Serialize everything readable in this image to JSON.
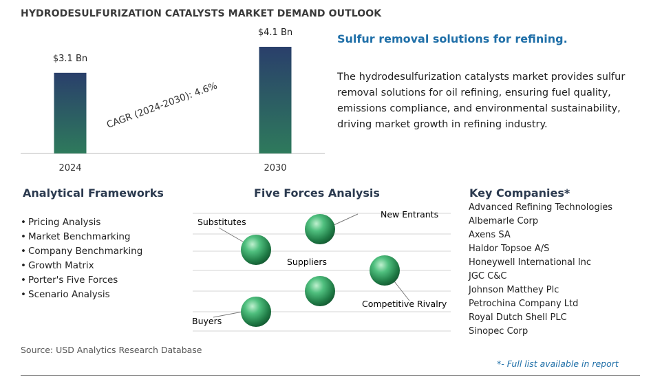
{
  "header": {
    "title": "HYDRODESULFURIZATION CATALYSTS MARKET DEMAND OUTLOOK"
  },
  "chart_data": {
    "type": "bar",
    "categories": [
      "2024",
      "2030"
    ],
    "values": [
      3.1,
      4.1
    ],
    "data_labels": [
      "$3.1 Bn",
      "$4.1 Bn"
    ],
    "annotation": "CAGR (2024-2030):  4.6%",
    "ylim": [
      0,
      4.1
    ],
    "grid": false
  },
  "colors": {
    "bar_top": "#2a3f6b",
    "bar_bottom": "#2e7a5c",
    "accent_blue": "#1f6fa8",
    "sphere": "#2e9e5e"
  },
  "summary": {
    "tagline": "Sulfur removal solutions for refining.",
    "description": "The hydrodesulfurization catalysts market provides sulfur removal solutions for oil refining, ensuring fuel quality, emissions compliance, and environmental sustainability, driving market growth in refining industry."
  },
  "frameworks": {
    "title": "Analytical Frameworks",
    "items": [
      "Pricing Analysis",
      "Market Benchmarking",
      "Company Benchmarking",
      "Growth Matrix",
      "Porter's Five Forces",
      "Scenario Analysis"
    ]
  },
  "five_forces": {
    "title": "Five Forces Analysis",
    "labels": {
      "substitutes": "Substitutes",
      "new_entrants": "New Entrants",
      "suppliers": "Suppliers",
      "competitive_rivalry": "Competitive Rivalry",
      "buyers": "Buyers"
    }
  },
  "companies": {
    "title": "Key Companies*",
    "items": [
      "Advanced Refining Technologies",
      "Albemarle Corp",
      "Axens SA",
      "Haldor Topsoe A/S",
      "Honeywell International Inc",
      "JGC C&C",
      "Johnson Matthey Plc",
      "Petrochina Company Ltd",
      "Royal Dutch Shell PLC",
      "Sinopec Corp"
    ]
  },
  "footer": {
    "source": "Source: USD Analytics Research Database",
    "note": "*- Full list available in report"
  }
}
